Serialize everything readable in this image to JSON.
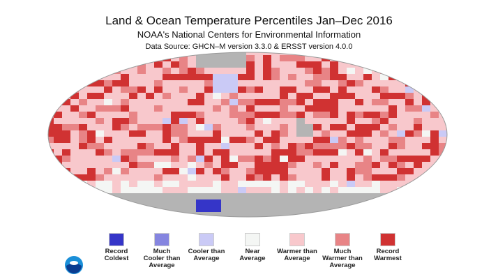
{
  "header": {
    "title": "Land & Ocean Temperature Percentiles Jan–Dec 2016",
    "subtitle": "NOAA's National Centers for Environmental Information",
    "source": "Data Source: GHCN–M version 3.3.0 & ERSST version 4.0.0"
  },
  "map": {
    "projection": "Robinson",
    "period": "Jan–Dec 2016",
    "no_data_color": "#b4b4b4"
  },
  "legend": [
    {
      "line1": "Record",
      "line2": "Coldest",
      "line3": "",
      "color": "#3535c8"
    },
    {
      "line1": "Much",
      "line2": "Cooler than",
      "line3": "Average",
      "color": "#8585e0"
    },
    {
      "line1": "Cooler than",
      "line2": "Average",
      "line3": "",
      "color": "#cacaf6"
    },
    {
      "line1": "Near",
      "line2": "Average",
      "line3": "",
      "color": "#f4f6f4"
    },
    {
      "line1": "Warmer than",
      "line2": "Average",
      "line3": "",
      "color": "#f8c8cc"
    },
    {
      "line1": "Much",
      "line2": "Warmer than",
      "line3": "Average",
      "color": "#e88486"
    },
    {
      "line1": "Record",
      "line2": "Warmest",
      "line3": "",
      "color": "#d03232"
    }
  ],
  "logo": {
    "text": "NOAA",
    "icon": "noaa-logo"
  }
}
